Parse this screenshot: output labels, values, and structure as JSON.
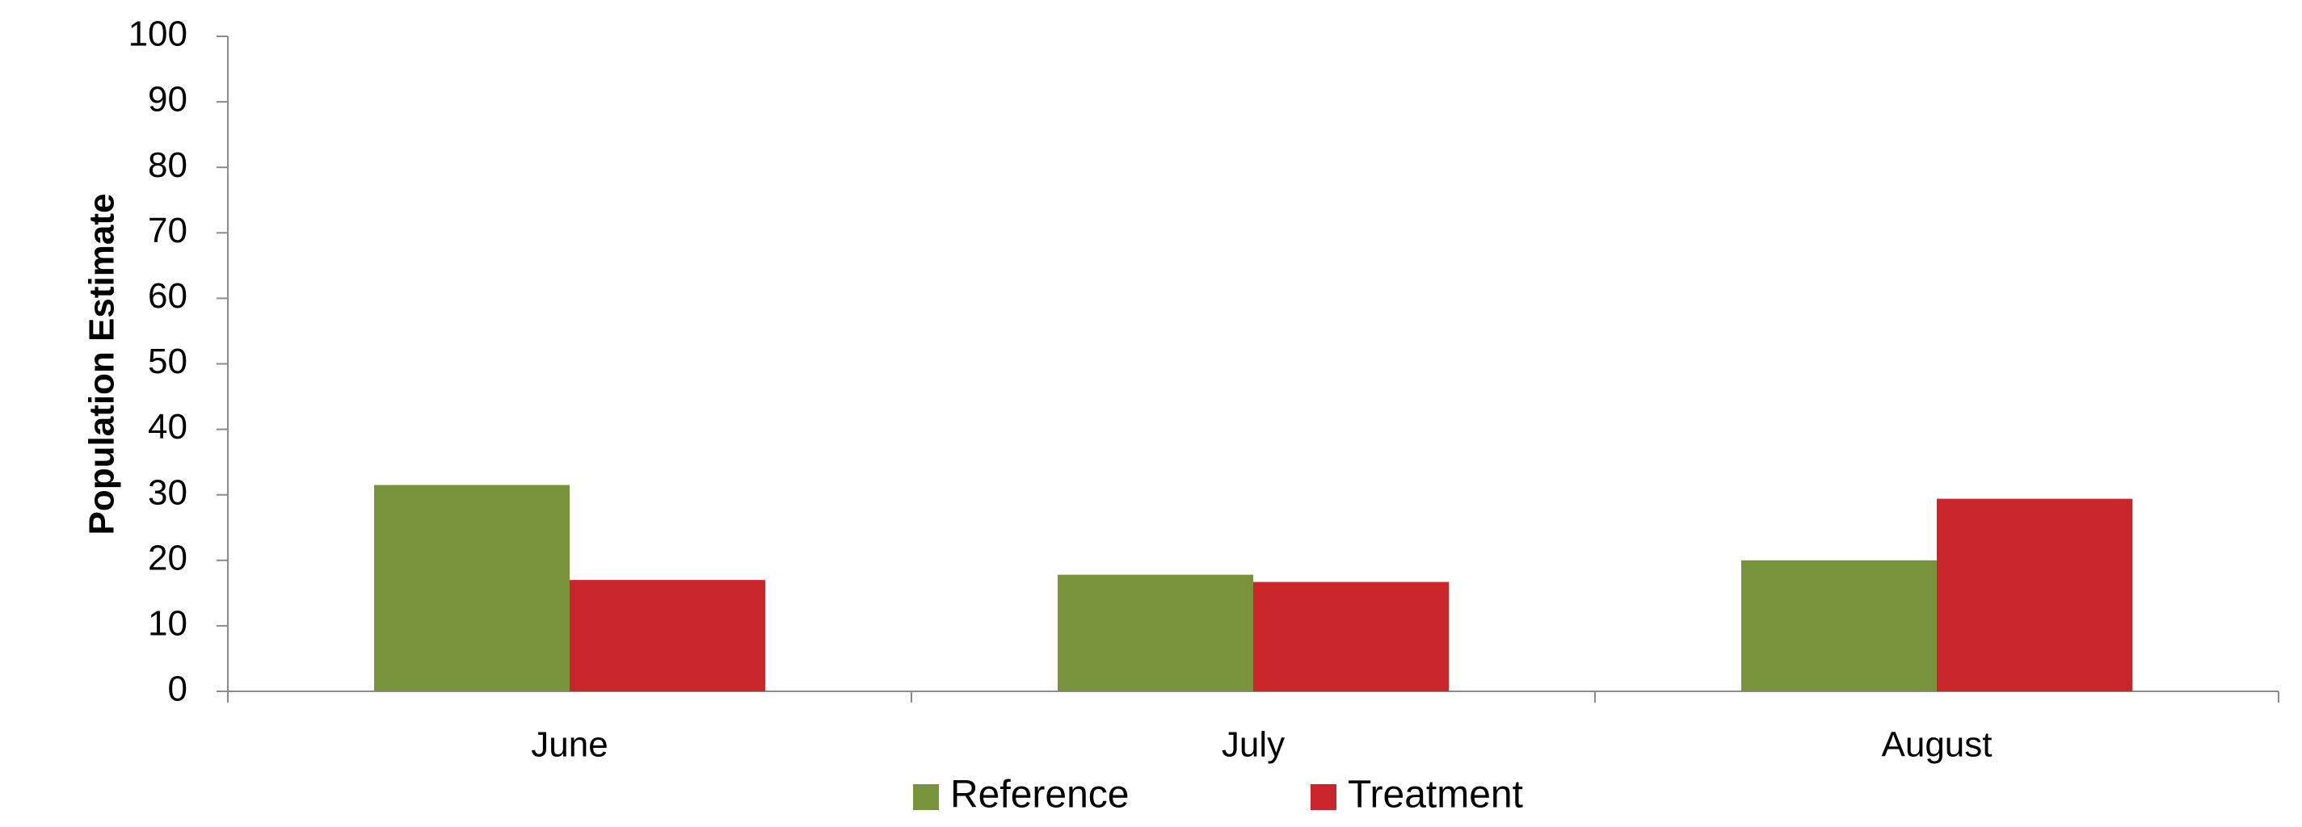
{
  "chart_data": {
    "type": "bar",
    "categories": [
      "June",
      "July",
      "August"
    ],
    "series": [
      {
        "name": "Reference",
        "values": [
          31.5,
          17.8,
          20.0
        ],
        "color": "#77933C"
      },
      {
        "name": "Treatment",
        "values": [
          17.0,
          16.7,
          29.4
        ],
        "color": "#C9252A"
      }
    ],
    "title": "",
    "xlabel": "",
    "ylabel": "Population Estimate",
    "ylim": [
      0,
      100
    ],
    "yticks": [
      "0",
      "10",
      "20",
      "30",
      "40",
      "50",
      "60",
      "70",
      "80",
      "90",
      "100"
    ],
    "grid": false,
    "legend": "bottom-center"
  }
}
